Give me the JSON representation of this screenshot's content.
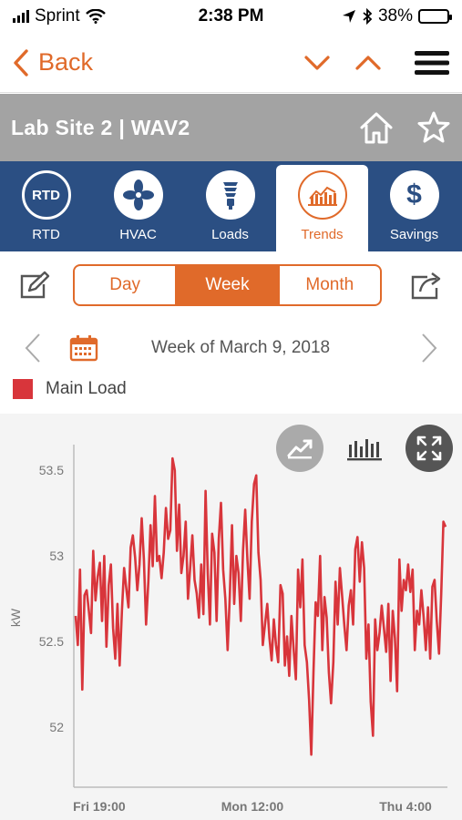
{
  "status_bar": {
    "carrier": "Sprint",
    "time": "2:38 PM",
    "battery": "38%",
    "battery_level": 0.38
  },
  "nav": {
    "back_label": "Back"
  },
  "site": {
    "title": "Lab Site 2 | WAV2"
  },
  "tabs": [
    {
      "label": "RTD",
      "icon": "rtd-icon",
      "badge": "RTD"
    },
    {
      "label": "HVAC",
      "icon": "fan-icon"
    },
    {
      "label": "Loads",
      "icon": "lightbulb-icon"
    },
    {
      "label": "Trends",
      "icon": "trend-bars-icon",
      "active": true
    },
    {
      "label": "Savings",
      "icon": "dollar-icon",
      "badge": "$"
    }
  ],
  "period": {
    "options": [
      "Day",
      "Week",
      "Month"
    ],
    "selected": "Week"
  },
  "date": {
    "label": "Week of March 9, 2018"
  },
  "legend": {
    "label": "Main Load",
    "color": "#d8353b"
  },
  "colors": {
    "accent": "#e06a2a",
    "tab_bg": "#2b4f83",
    "header_bg": "#a3a3a3",
    "series": "#d8353b"
  },
  "chart_data": {
    "type": "line",
    "ylabel": "kW",
    "xlabel": "",
    "ylim": [
      51.65,
      53.65
    ],
    "yticks": [
      "53.5",
      "53",
      "52.5",
      "52"
    ],
    "ytick_values": [
      53.5,
      53,
      52.5,
      52
    ],
    "xticks": [
      "Fri 19:00",
      "Mon 12:00",
      "Thu 4:00"
    ],
    "xtick_positions": [
      10,
      75,
      140
    ],
    "x_range": [
      0,
      157
    ],
    "series": [
      {
        "name": "Main Load",
        "values": [
          52.65,
          52.48,
          52.92,
          52.22,
          52.77,
          52.8,
          52.68,
          52.55,
          53.03,
          52.74,
          52.88,
          52.96,
          52.62,
          53.0,
          52.47,
          52.83,
          52.95,
          52.58,
          52.4,
          52.72,
          52.36,
          52.68,
          52.93,
          52.81,
          52.7,
          53.05,
          53.12,
          52.99,
          52.8,
          52.95,
          53.22,
          52.98,
          52.6,
          52.85,
          53.18,
          52.94,
          53.35,
          52.97,
          53.0,
          52.87,
          53.02,
          53.28,
          53.1,
          53.15,
          53.57,
          53.5,
          53.03,
          53.3,
          52.9,
          53.0,
          53.2,
          52.75,
          52.93,
          53.12,
          52.86,
          52.78,
          52.64,
          52.95,
          52.66,
          53.38,
          52.9,
          52.6,
          53.13,
          53.02,
          52.62,
          53.1,
          53.31,
          52.92,
          52.75,
          52.45,
          52.77,
          53.18,
          52.72,
          53.0,
          52.9,
          52.62,
          53.03,
          53.27,
          52.98,
          52.75,
          53.2,
          53.42,
          53.47,
          53.02,
          52.86,
          52.48,
          52.6,
          52.72,
          52.52,
          52.39,
          52.63,
          52.48,
          52.38,
          52.83,
          52.78,
          52.36,
          52.53,
          52.3,
          52.65,
          52.45,
          52.28,
          52.92,
          52.7,
          52.98,
          52.48,
          52.38,
          52.16,
          51.84,
          52.32,
          52.73,
          52.65,
          53.0,
          52.45,
          52.76,
          52.64,
          52.32,
          52.14,
          52.38,
          52.85,
          52.6,
          52.93,
          52.77,
          52.6,
          52.45,
          52.71,
          52.8,
          52.6,
          53.04,
          53.11,
          52.85,
          53.08,
          52.93,
          52.4,
          52.6,
          52.15,
          51.95,
          52.63,
          52.45,
          52.55,
          52.71,
          52.58,
          52.44,
          52.72,
          52.27,
          52.68,
          52.52,
          52.21,
          52.98,
          52.68,
          52.86,
          52.8,
          52.95,
          52.79,
          52.92,
          52.45,
          52.68,
          52.6,
          52.8,
          52.65,
          52.45,
          52.7,
          52.4,
          52.82,
          52.86,
          52.62,
          52.43,
          52.78,
          53.2,
          53.17
        ]
      }
    ]
  }
}
